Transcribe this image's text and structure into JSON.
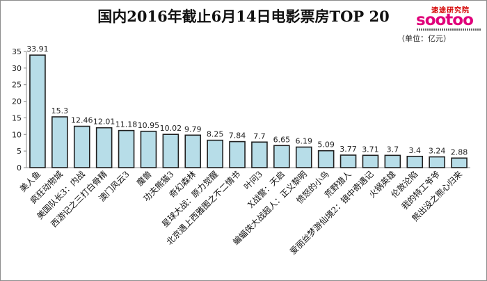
{
  "chart_data": {
    "type": "bar",
    "title": "国内2016年截止6月14日电影票房TOP 20",
    "unit_label": "（单位：亿元）",
    "logo": {
      "brand": "sootoo",
      "tagline": "速途研究院"
    },
    "categories": [
      "美人鱼",
      "疯狂动物城",
      "美国队长3：内战",
      "西游记之三打白骨精",
      "澳门风云3",
      "魔兽",
      "功夫熊猫3",
      "奇幻森林",
      "星球大战：原力觉醒",
      "北京遇上西雅图之不二情书",
      "叶问3",
      "X战警：天启",
      "蝙蝠侠大战超人：正义黎明",
      "愤怒的小鸟",
      "荒野猎人",
      "爱丽丝梦游仙境2：镜中奇遇记",
      "火锅英雄",
      "伦敦沦陷",
      "我的特工爷爷",
      "熊出没之熊心归来"
    ],
    "values": [
      33.91,
      15.3,
      12.46,
      12.01,
      11.18,
      10.95,
      10.02,
      9.79,
      8.25,
      7.84,
      7.7,
      6.65,
      6.19,
      5.09,
      3.77,
      3.71,
      3.7,
      3.4,
      3.24,
      2.88
    ],
    "value_labels": [
      "33.91",
      "15.3",
      "12.46",
      "12.01",
      "11.18",
      "10.95",
      "10.02",
      "9.79",
      "8.25",
      "7.84",
      "7.7",
      "6.65",
      "6.19",
      "5.09",
      "3.77",
      "3.71",
      "3.7",
      "3.4",
      "3.24",
      "2.88"
    ],
    "yticks": [
      "0",
      "5",
      "10",
      "15",
      "20",
      "25",
      "30",
      "35"
    ],
    "ylim": [
      0,
      35
    ],
    "grid": false,
    "colors": {
      "fill": "#b7dde8",
      "stroke": "#1f1f1f",
      "axis": "#888888"
    }
  }
}
